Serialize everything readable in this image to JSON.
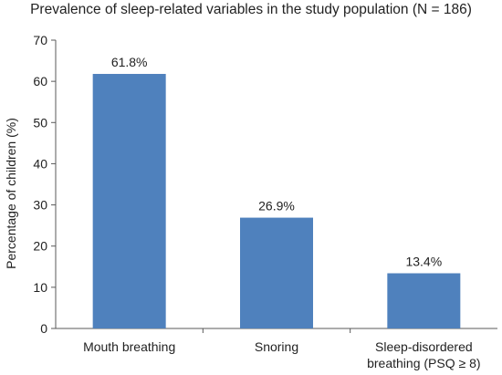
{
  "chart_data": {
    "type": "bar",
    "title": "Prevalence of sleep-related variables in the study population (N = 186)",
    "xlabel": "",
    "ylabel": "Percentage of children (%)",
    "categories": [
      [
        "Mouth breathing"
      ],
      [
        "Snoring"
      ],
      [
        "Sleep-disordered",
        "breathing (PSQ ≥ 8)"
      ]
    ],
    "values": [
      61.8,
      26.9,
      13.4
    ],
    "data_labels": [
      "61.8%",
      "26.9%",
      "13.4%"
    ],
    "ylim": [
      0,
      70
    ],
    "yticks": [
      0,
      10,
      20,
      30,
      40,
      50,
      60,
      70
    ],
    "grid": false,
    "legend": "none",
    "colors": {
      "bar": "#4f81bd",
      "axis": "#595959"
    }
  }
}
